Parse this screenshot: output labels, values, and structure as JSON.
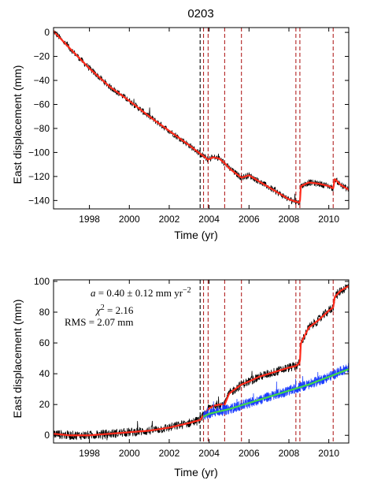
{
  "chart_data": [
    {
      "type": "line",
      "title": "0203",
      "xlabel": "Time (yr)",
      "ylabel": "East displacement (mm)",
      "xlim": [
        1996.2,
        2011.0
      ],
      "ylim": [
        -147,
        4
      ],
      "x_ticks": [
        1998,
        2000,
        2002,
        2004,
        2006,
        2008,
        2010
      ],
      "x_tick_labels": [
        "1998",
        "2000",
        "2002",
        "2004",
        "2006",
        "2008",
        "2010"
      ],
      "y_ticks": [
        0,
        -20,
        -40,
        -60,
        -80,
        -100,
        -120,
        -140
      ],
      "y_tick_labels": [
        "0",
        "−20",
        "−40",
        "−60",
        "−80",
        "−100",
        "−120",
        "−140"
      ],
      "vertical_lines": [
        {
          "x": 2003.55,
          "color": "#000000"
        },
        {
          "x": 2003.72,
          "color": "#b22222"
        },
        {
          "x": 2003.95,
          "color": "#b22222"
        },
        {
          "x": 2004.78,
          "color": "#b22222"
        },
        {
          "x": 2005.62,
          "color": "#b22222"
        },
        {
          "x": 2008.35,
          "color": "#b22222"
        },
        {
          "x": 2008.55,
          "color": "#b22222"
        },
        {
          "x": 2010.22,
          "color": "#b22222"
        }
      ],
      "series": [
        {
          "role": "observed",
          "color": "#000000",
          "noise": 1.6,
          "x": [
            1996.2,
            1997.0,
            1998.0,
            1999.0,
            2000.0,
            2001.0,
            2002.0,
            2003.0,
            2003.55,
            2003.72,
            2003.95,
            2004.2,
            2004.5,
            2004.78,
            2005.0,
            2005.3,
            2005.62,
            2006.0,
            2006.5,
            2007.0,
            2007.5,
            2008.0,
            2008.35,
            2008.55,
            2008.6,
            2009.0,
            2009.5,
            2010.0,
            2010.22,
            2010.3,
            2010.6,
            2011.0
          ],
          "y": [
            1,
            -13,
            -30,
            -45,
            -57,
            -70,
            -82,
            -94,
            -101,
            -103,
            -106,
            -104,
            -105,
            -109,
            -113,
            -117,
            -121,
            -119,
            -124,
            -129,
            -134,
            -139,
            -141,
            -142,
            -128,
            -125,
            -126,
            -128,
            -130,
            -122,
            -127,
            -131
          ]
        },
        {
          "role": "model",
          "color": "#ff2a1a",
          "x": [
            1996.2,
            1997.0,
            1998.0,
            1999.0,
            2000.0,
            2001.0,
            2002.0,
            2003.0,
            2003.55,
            2003.72,
            2003.95,
            2004.2,
            2004.5,
            2004.78,
            2005.0,
            2005.3,
            2005.62,
            2006.0,
            2006.5,
            2007.0,
            2007.5,
            2008.0,
            2008.35,
            2008.55,
            2008.6,
            2009.0,
            2009.5,
            2010.0,
            2010.22,
            2010.3,
            2010.6,
            2011.0
          ],
          "y": [
            1,
            -13,
            -30,
            -45,
            -57,
            -70,
            -82,
            -94,
            -101,
            -103,
            -106,
            -104,
            -105,
            -109,
            -113,
            -117,
            -121,
            -119,
            -124,
            -129,
            -134,
            -139,
            -141,
            -142,
            -128,
            -125,
            -126,
            -128,
            -130,
            -122,
            -127,
            -131
          ]
        }
      ]
    },
    {
      "type": "line",
      "title": "",
      "xlabel": "Time (yr)",
      "ylabel": "East displacement (mm)",
      "xlim": [
        1996.2,
        2011.0
      ],
      "ylim": [
        -5,
        101
      ],
      "x_ticks": [
        1998,
        2000,
        2002,
        2004,
        2006,
        2008,
        2010
      ],
      "x_tick_labels": [
        "1998",
        "2000",
        "2002",
        "2004",
        "2006",
        "2008",
        "2010"
      ],
      "y_ticks": [
        0,
        20,
        40,
        60,
        80,
        100
      ],
      "y_tick_labels": [
        "0",
        "20",
        "40",
        "60",
        "80",
        "100"
      ],
      "annotations": {
        "accel_var": "a",
        "accel_text": " = 0.40 ± 0.12 mm yr",
        "accel_exp": "−2",
        "chi_var": "χ",
        "chi_exp": "2",
        "chi_text": " = 2.16",
        "rms_text": "RMS = 2.07 mm"
      },
      "vertical_lines": [
        {
          "x": 2003.55,
          "color": "#000000"
        },
        {
          "x": 2003.72,
          "color": "#b22222"
        },
        {
          "x": 2003.95,
          "color": "#b22222"
        },
        {
          "x": 2004.78,
          "color": "#b22222"
        },
        {
          "x": 2005.62,
          "color": "#b22222"
        },
        {
          "x": 2008.35,
          "color": "#b22222"
        },
        {
          "x": 2008.55,
          "color": "#b22222"
        },
        {
          "x": 2010.22,
          "color": "#b22222"
        }
      ],
      "series": [
        {
          "role": "detrended-observed",
          "color": "#000000",
          "noise": 1.8,
          "x": [
            1996.2,
            1997.0,
            1998.0,
            1999.0,
            2000.0,
            2001.0,
            2002.0,
            2003.0,
            2003.55,
            2003.72,
            2003.95,
            2004.2,
            2004.5,
            2004.78,
            2005.0,
            2005.3,
            2005.62,
            2006.0,
            2006.5,
            2007.0,
            2007.5,
            2008.0,
            2008.35,
            2008.55,
            2008.6,
            2009.0,
            2009.5,
            2010.0,
            2010.22,
            2010.3,
            2010.6,
            2011.0
          ],
          "y": [
            1,
            0,
            0,
            1,
            2,
            3,
            5,
            8,
            10,
            13,
            17,
            19,
            20,
            20,
            27,
            30,
            33,
            35,
            38,
            40,
            42,
            44,
            45,
            47,
            60,
            70,
            75,
            81,
            83,
            90,
            94,
            97
          ]
        },
        {
          "role": "detrended-model",
          "color": "#ff2a1a",
          "x": [
            1996.2,
            1997.0,
            1998.0,
            1999.0,
            2000.0,
            2001.0,
            2002.0,
            2003.0,
            2003.55,
            2003.72,
            2003.95,
            2004.2,
            2004.5,
            2004.78,
            2005.0,
            2005.3,
            2005.62,
            2006.0,
            2006.5,
            2007.0,
            2007.5,
            2008.0,
            2008.35,
            2008.55,
            2008.6,
            2009.0,
            2009.5,
            2010.0,
            2010.22,
            2010.3,
            2010.6,
            2011.0
          ],
          "y": [
            1,
            0,
            0,
            1,
            2,
            3,
            5,
            8,
            10,
            13,
            17,
            19,
            20,
            20,
            27,
            30,
            33,
            35,
            38,
            40,
            42,
            44,
            45,
            47,
            60,
            70,
            75,
            81,
            83,
            90,
            94,
            97
          ]
        },
        {
          "role": "step-removed-observed",
          "color": "#1a3cff",
          "noise": 2.0,
          "x": [
            2003.7,
            2004.0,
            2005.0,
            2006.0,
            2007.0,
            2008.0,
            2009.0,
            2010.0,
            2011.0
          ],
          "y": [
            12,
            14,
            17,
            21,
            25,
            29,
            33,
            38,
            44
          ]
        },
        {
          "role": "acceleration-fit",
          "color": "#3fd94a",
          "x": [
            2003.7,
            2004.0,
            2005.0,
            2006.0,
            2007.0,
            2008.0,
            2009.0,
            2010.0,
            2011.0
          ],
          "y": [
            12,
            14,
            17,
            21,
            25,
            29,
            33,
            38,
            43
          ]
        }
      ]
    }
  ]
}
